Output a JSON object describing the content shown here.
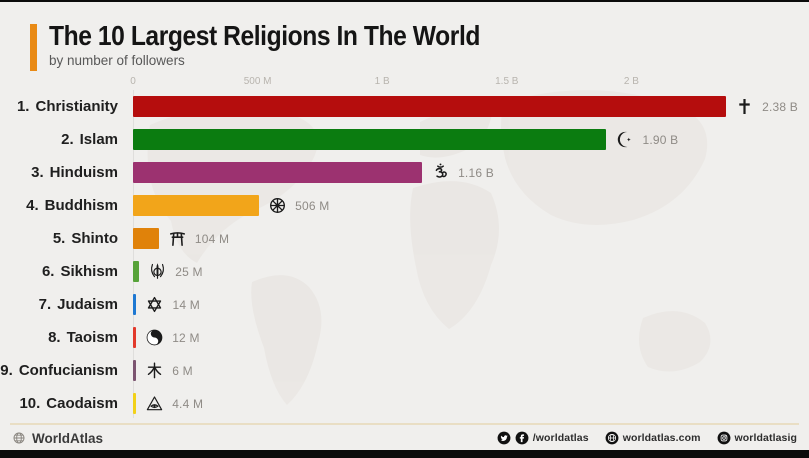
{
  "page": {
    "background": "#f0efed",
    "accent_color": "#e98a15"
  },
  "header": {
    "title": "The 10 Largest Religions In The World",
    "subtitle": "by number of followers"
  },
  "chart_data": {
    "type": "bar",
    "orientation": "horizontal",
    "title": "The 10 Largest Religions In The World",
    "subtitle": "by number of followers",
    "unit": "followers",
    "xlim_millions": [
      0,
      2500
    ],
    "grid": false,
    "x_ticks": [
      {
        "label": "0",
        "value_millions": 0
      },
      {
        "label": "500 M",
        "value_millions": 500
      },
      {
        "label": "1 B",
        "value_millions": 1000
      },
      {
        "label": "1.5 B",
        "value_millions": 1500
      },
      {
        "label": "2 B",
        "value_millions": 2000
      }
    ],
    "items": [
      {
        "rank": "1.",
        "name": "Christianity",
        "value_millions": 2380,
        "value_label": "2.38 B",
        "color": "#b50d0d",
        "icon": "cross-icon"
      },
      {
        "rank": "2.",
        "name": "Islam",
        "value_millions": 1900,
        "value_label": "1.90 B",
        "color": "#0b7c10",
        "icon": "star-and-crescent-icon"
      },
      {
        "rank": "3.",
        "name": "Hinduism",
        "value_millions": 1160,
        "value_label": "1.16 B",
        "color": "#9c3270",
        "icon": "om-icon"
      },
      {
        "rank": "4.",
        "name": "Buddhism",
        "value_millions": 506,
        "value_label": "506 M",
        "color": "#f2a51a",
        "icon": "dharma-wheel-icon"
      },
      {
        "rank": "5.",
        "name": "Shinto",
        "value_millions": 104,
        "value_label": "104 M",
        "color": "#e0820a",
        "icon": "torii-gate-icon"
      },
      {
        "rank": "6.",
        "name": "Sikhism",
        "value_millions": 25,
        "value_label": "25 M",
        "color": "#57a339",
        "icon": "khanda-icon"
      },
      {
        "rank": "7.",
        "name": "Judaism",
        "value_millions": 14,
        "value_label": "14 M",
        "color": "#1e78d2",
        "icon": "star-of-david-icon"
      },
      {
        "rank": "8.",
        "name": "Taoism",
        "value_millions": 12,
        "value_label": "12 M",
        "color": "#e2392b",
        "icon": "yin-yang-icon"
      },
      {
        "rank": "9.",
        "name": "Confucianism",
        "value_millions": 6,
        "value_label": "6 M",
        "color": "#7c5470",
        "icon": "wood-character-icon"
      },
      {
        "rank": "10.",
        "name": "Caodaism",
        "value_millions": 4.4,
        "value_label": "4.4 M",
        "color": "#f2d118",
        "icon": "eye-of-providence-icon"
      }
    ]
  },
  "footer": {
    "brand": "WorldAtlas",
    "social": [
      {
        "icons": [
          "twitter-icon",
          "facebook-icon"
        ],
        "label": "/worldatlas"
      },
      {
        "icons": [
          "globe-icon"
        ],
        "label": "worldatlas.com"
      },
      {
        "icons": [
          "instagram-icon"
        ],
        "label": "worldatlasig"
      }
    ]
  }
}
